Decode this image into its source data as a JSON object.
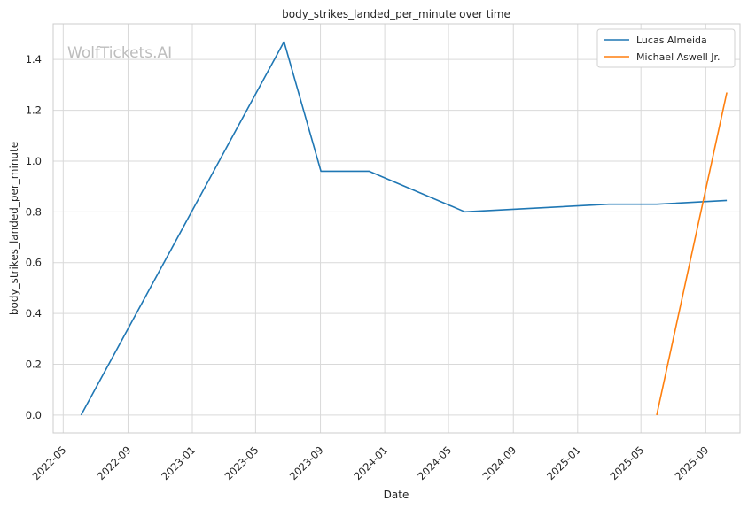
{
  "chart_data": {
    "type": "line",
    "title": "body_strikes_landed_per_minute over time",
    "xlabel": "Date",
    "ylabel": "body_strikes_landed_per_minute",
    "watermark": "WolfTickets.AI",
    "x_axis_type": "date",
    "xlim": [
      "2022-04-12",
      "2025-11-05"
    ],
    "ylim": [
      -0.07,
      1.54
    ],
    "x_ticks": [
      "2022-05",
      "2022-09",
      "2023-01",
      "2023-05",
      "2023-09",
      "2024-01",
      "2024-05",
      "2024-09",
      "2025-01",
      "2025-05",
      "2025-09"
    ],
    "y_ticks": [
      0.0,
      0.2,
      0.4,
      0.6,
      0.8,
      1.0,
      1.2,
      1.4
    ],
    "y_tick_labels": [
      "0.0",
      "0.2",
      "0.4",
      "0.6",
      "0.8",
      "1.0",
      "1.2",
      "1.4"
    ],
    "grid": true,
    "legend_position": "top-right",
    "series": [
      {
        "name": "Lucas Almeida",
        "color": "#1f77b4",
        "points": [
          {
            "x": "2022-06-04",
            "y": 0.0
          },
          {
            "x": "2023-06-24",
            "y": 1.47
          },
          {
            "x": "2023-09-02",
            "y": 0.96
          },
          {
            "x": "2023-12-02",
            "y": 0.96
          },
          {
            "x": "2024-06-01",
            "y": 0.8
          },
          {
            "x": "2025-03-01",
            "y": 0.83
          },
          {
            "x": "2025-05-31",
            "y": 0.83
          },
          {
            "x": "2025-10-11",
            "y": 0.845
          }
        ]
      },
      {
        "name": "Michael Aswell Jr.",
        "color": "#ff7f0e",
        "points": [
          {
            "x": "2025-05-31",
            "y": 0.0
          },
          {
            "x": "2025-10-11",
            "y": 1.27
          }
        ]
      }
    ]
  }
}
